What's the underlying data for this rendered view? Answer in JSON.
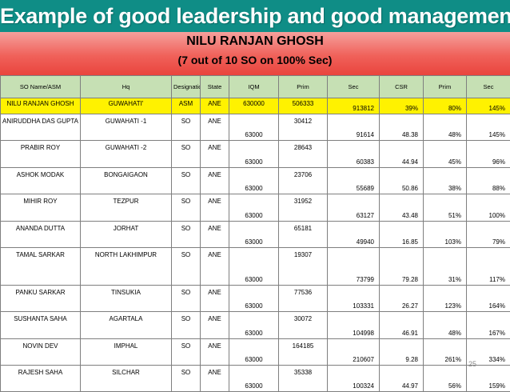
{
  "title": "Example of good leadership and good management",
  "subtitle_1": "NILU RANJAN GHOSH",
  "subtitle_2": "(7 out of 10 SO on 100% Sec)",
  "colors": {
    "banner": "#0f8d86",
    "subtitle_band": "#f0615a",
    "header_row": "#c6e0b4",
    "highlight_row": "#fff200"
  },
  "table": {
    "headers": [
      "SO Name/ASM",
      "Hq",
      "Designation",
      "State",
      "IQM",
      "Prim",
      "Sec",
      "CSR",
      "Prim",
      "Sec"
    ],
    "rows": [
      [
        "NILU RANJAN GHOSH",
        "GUWAHATI'",
        "ASM",
        "ANE",
        "630000",
        "506333",
        "913812",
        "39%",
        "80%",
        "145%"
      ],
      [
        "ANIRUDDHA DAS GUPTA",
        "GUWAHATI -1",
        "SO",
        "ANE",
        "63000",
        "30412",
        "91614",
        "48.38",
        "48%",
        "145%"
      ],
      [
        "PRABIR ROY",
        "GUWAHATI -2",
        "SO",
        "ANE",
        "63000",
        "28643",
        "60383",
        "44.94",
        "45%",
        "96%"
      ],
      [
        "ASHOK MODAK",
        "BONGAIGAON",
        "SO",
        "ANE",
        "63000",
        "23706",
        "55689",
        "50.86",
        "38%",
        "88%"
      ],
      [
        "MIHIR ROY",
        "TEZPUR",
        "SO",
        "ANE",
        "63000",
        "31952",
        "63127",
        "43.48",
        "51%",
        "100%"
      ],
      [
        "ANANDA DUTTA",
        "JORHAT",
        "SO",
        "ANE",
        "63000",
        "65181",
        "49940",
        "16.85",
        "103%",
        "79%"
      ],
      [
        "TAMAL SARKAR",
        "NORTH LAKHIMPUR",
        "SO",
        "ANE",
        "63000",
        "19307",
        "73799",
        "79.28",
        "31%",
        "117%"
      ],
      [
        "PANKU SARKAR",
        "TINSUKIA",
        "SO",
        "ANE",
        "63000",
        "77536",
        "103331",
        "26.27",
        "123%",
        "164%"
      ],
      [
        "SUSHANTA SAHA",
        "AGARTALA",
        "SO",
        "ANE",
        "63000",
        "30072",
        "104998",
        "46.91",
        "48%",
        "167%"
      ],
      [
        "NOVIN DEV",
        "IMPHAL",
        "SO",
        "ANE",
        "63000",
        "164185",
        "210607",
        "9.28",
        "261%",
        "334%"
      ],
      [
        "RAJESH SAHA",
        "SILCHAR",
        "SO",
        "ANE",
        "63000",
        "35338",
        "100324",
        "44.97",
        "56%",
        "159%"
      ]
    ]
  },
  "page_number": "25"
}
